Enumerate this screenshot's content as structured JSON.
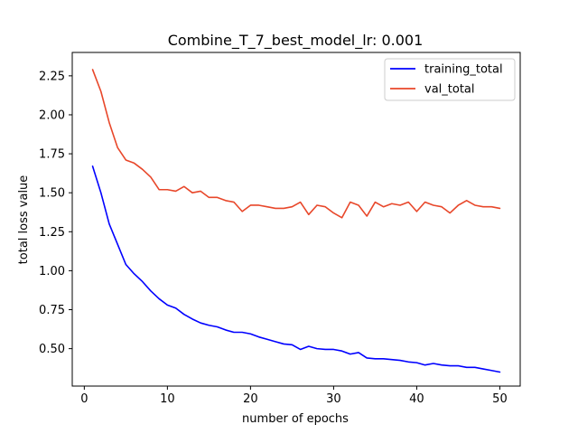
{
  "chart_data": {
    "type": "line",
    "title": "Combine_T_7_best_model_lr: 0.001",
    "xlabel": "number of epochs",
    "ylabel": "total loss value",
    "xlim": [
      -1.45,
      52.45
    ],
    "ylim": [
      0.26,
      2.4
    ],
    "xticks": [
      0,
      10,
      20,
      30,
      40,
      50
    ],
    "yticks": [
      0.5,
      0.75,
      1.0,
      1.25,
      1.5,
      1.75,
      2.0,
      2.25
    ],
    "ytick_labels": [
      "0.50",
      "0.75",
      "1.00",
      "1.25",
      "1.50",
      "1.75",
      "2.00",
      "2.25"
    ],
    "grid": false,
    "legend_position": "upper right",
    "x": [
      1,
      2,
      3,
      4,
      5,
      6,
      7,
      8,
      9,
      10,
      11,
      12,
      13,
      14,
      15,
      16,
      17,
      18,
      19,
      20,
      21,
      22,
      23,
      24,
      25,
      26,
      27,
      28,
      29,
      30,
      31,
      32,
      33,
      34,
      35,
      36,
      37,
      38,
      39,
      40,
      41,
      42,
      43,
      44,
      45,
      46,
      47,
      48,
      49,
      50
    ],
    "series": [
      {
        "name": "training_total",
        "color": "#0000ff",
        "values": [
          1.67,
          1.5,
          1.3,
          1.17,
          1.04,
          0.98,
          0.93,
          0.87,
          0.82,
          0.78,
          0.76,
          0.72,
          0.69,
          0.665,
          0.65,
          0.64,
          0.62,
          0.605,
          0.605,
          0.595,
          0.575,
          0.56,
          0.545,
          0.53,
          0.525,
          0.495,
          0.515,
          0.5,
          0.495,
          0.495,
          0.485,
          0.465,
          0.475,
          0.44,
          0.435,
          0.435,
          0.43,
          0.425,
          0.415,
          0.41,
          0.395,
          0.405,
          0.395,
          0.39,
          0.39,
          0.38,
          0.38,
          0.37,
          0.36,
          0.35
        ]
      },
      {
        "name": "val_total",
        "color": "#e8472a",
        "values": [
          2.29,
          2.15,
          1.95,
          1.79,
          1.71,
          1.69,
          1.65,
          1.6,
          1.52,
          1.52,
          1.51,
          1.54,
          1.5,
          1.51,
          1.47,
          1.47,
          1.45,
          1.44,
          1.38,
          1.42,
          1.42,
          1.41,
          1.4,
          1.4,
          1.41,
          1.44,
          1.36,
          1.42,
          1.41,
          1.37,
          1.34,
          1.44,
          1.42,
          1.35,
          1.44,
          1.41,
          1.43,
          1.42,
          1.44,
          1.38,
          1.44,
          1.42,
          1.41,
          1.37,
          1.42,
          1.45,
          1.42,
          1.41,
          1.41,
          1.4
        ]
      }
    ]
  }
}
